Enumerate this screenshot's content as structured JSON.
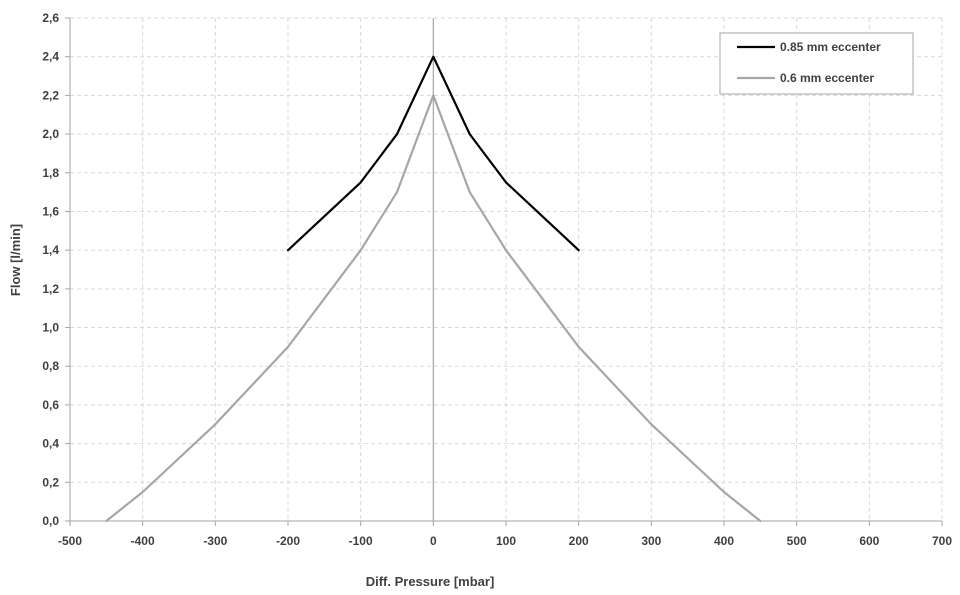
{
  "chart_data": {
    "type": "line",
    "title": "",
    "xlabel": "Diff. Pressure [mbar]",
    "ylabel": "Flow [l/min]",
    "xlim": [
      -500,
      700
    ],
    "ylim": [
      0,
      2.6
    ],
    "x_ticks": [
      "-500",
      "-400",
      "-300",
      "-200",
      "-100",
      "0",
      "100",
      "200",
      "300",
      "400",
      "500",
      "600",
      "700"
    ],
    "y_ticks": [
      "0,0",
      "0,2",
      "0,4",
      "0,6",
      "0,8",
      "1,0",
      "1,2",
      "1,4",
      "1,6",
      "1,8",
      "2,0",
      "2,2",
      "2,4",
      "2,6"
    ],
    "grid": true,
    "legend_position": "top-right",
    "series": [
      {
        "name": "0.85 mm eccenter",
        "color": "#000000",
        "x": [
          -200,
          -100,
          -50,
          0,
          50,
          100,
          200
        ],
        "y": [
          1.4,
          1.75,
          2.0,
          2.4,
          2.0,
          1.75,
          1.4
        ]
      },
      {
        "name": "0.6 mm eccenter",
        "color": "#a6a6a6",
        "x": [
          -450,
          -400,
          -300,
          -200,
          -100,
          -50,
          0,
          50,
          100,
          200,
          300,
          400,
          450
        ],
        "y": [
          0.0,
          0.15,
          0.5,
          0.9,
          1.4,
          1.7,
          2.2,
          1.7,
          1.4,
          0.9,
          0.5,
          0.15,
          0.0
        ]
      }
    ]
  }
}
